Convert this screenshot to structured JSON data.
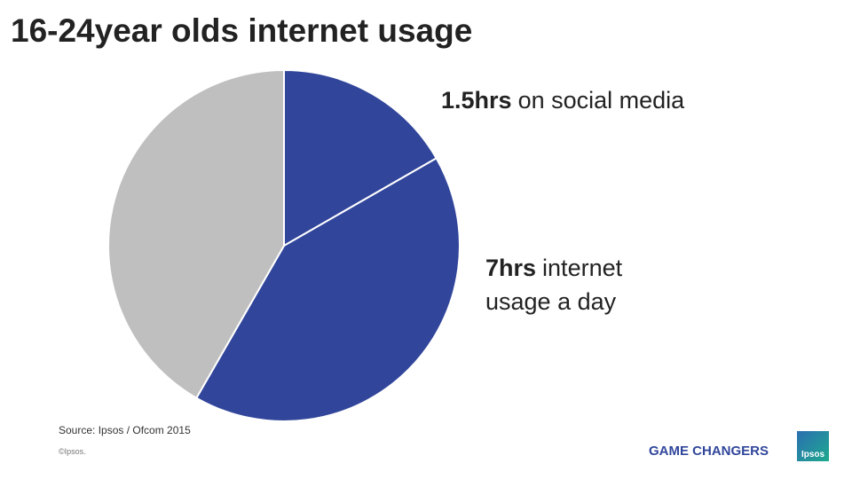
{
  "chart_data": {
    "type": "pie",
    "title": "16-24year olds internet usage",
    "categories": [
      null,
      null,
      null
    ],
    "values": [
      16.7,
      41.6,
      41.7
    ],
    "colors": [
      "#31469b",
      "#31469b",
      "#bfbfbf"
    ],
    "annotations": [
      {
        "bold": "1.5hrs",
        "text": "on social media"
      },
      {
        "bold": "7hrs",
        "text": "internet usage a day"
      }
    ],
    "source": "Source: Ipsos / Ofcom 2015"
  },
  "footer": {
    "copyright": "©Ipsos.",
    "tagline": "GAME CHANGERS",
    "logo": "Ipsos"
  }
}
